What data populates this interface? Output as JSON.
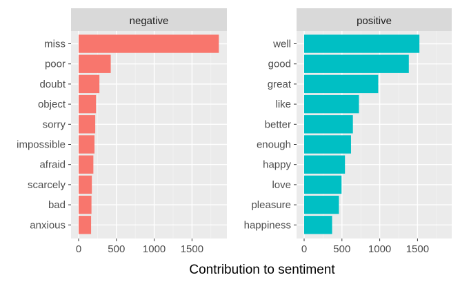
{
  "chart_data": {
    "type": "bar",
    "orientation": "horizontal",
    "xlabel": "Contribution to sentiment",
    "xlim": [
      0,
      1900
    ],
    "xticks": [
      0,
      500,
      1000,
      1500
    ],
    "grid": true,
    "panels": [
      {
        "name": "negative",
        "color": "#F8766D",
        "categories": [
          "miss",
          "poor",
          "doubt",
          "object",
          "sorry",
          "impossible",
          "afraid",
          "scarcely",
          "bad",
          "anxious"
        ],
        "values": [
          1855,
          425,
          275,
          230,
          220,
          210,
          195,
          175,
          170,
          165
        ]
      },
      {
        "name": "positive",
        "color": "#00BFC4",
        "categories": [
          "well",
          "good",
          "great",
          "like",
          "better",
          "enough",
          "happy",
          "love",
          "pleasure",
          "happiness"
        ],
        "values": [
          1525,
          1385,
          980,
          725,
          645,
          620,
          540,
          495,
          460,
          370
        ]
      }
    ]
  }
}
